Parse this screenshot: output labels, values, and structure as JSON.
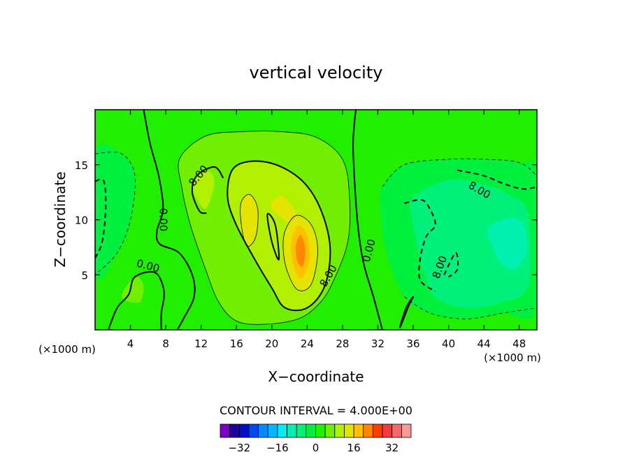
{
  "chart_data": {
    "type": "heatmap",
    "title": "vertical velocity",
    "xlabel": "X−coordinate",
    "ylabel": "Z−coordinate",
    "x_unit_left": "(×1000 m)",
    "x_unit_right": "(×1000 m)",
    "xlim": [
      0,
      50
    ],
    "ylim": [
      0,
      20
    ],
    "x_ticks": [
      4,
      8,
      12,
      16,
      20,
      24,
      28,
      32,
      36,
      40,
      44,
      48
    ],
    "y_ticks": [
      5,
      10,
      15
    ],
    "contour_interval_text": "CONTOUR INTERVAL = 4.000E+00",
    "contour_labels": [
      {
        "text": "8.00",
        "x": 11.7,
        "y": 14.0,
        "rotate": -50
      },
      {
        "text": "0.00",
        "x": 7.7,
        "y": 10.0,
        "rotate": 90
      },
      {
        "text": "0.00",
        "x": 31.0,
        "y": 7.2,
        "rotate": -75
      },
      {
        "text": "8.00",
        "x": 26.4,
        "y": 4.9,
        "rotate": -60
      },
      {
        "text": "0.00",
        "x": 6.0,
        "y": 5.8,
        "rotate": 15
      },
      {
        "text": "8.00",
        "x": 43.5,
        "y": 12.7,
        "rotate": 30
      },
      {
        "text": "8.00",
        "x": 39.0,
        "y": 5.7,
        "rotate": -70
      }
    ],
    "colorbar": {
      "colors": [
        "#7a00c8",
        "#1c00a0",
        "#0010c8",
        "#0048f0",
        "#0088ff",
        "#00b8ff",
        "#00ecf0",
        "#00f0b0",
        "#00f07c",
        "#00f040",
        "#20f000",
        "#70f000",
        "#b0f000",
        "#e4e400",
        "#ffc000",
        "#ff8800",
        "#ff3c00",
        "#f63a3a",
        "#f86868",
        "#fc9898"
      ],
      "tick_labels": [
        "−32",
        "−16",
        "0",
        "16",
        "32"
      ],
      "tick_values": [
        -32,
        -16,
        0,
        16,
        32
      ],
      "vmin": -40,
      "vmax": 40
    },
    "field_regions": [
      {
        "level": 0,
        "points": [
          [
            0,
            0
          ],
          [
            50,
            0
          ],
          [
            50,
            20
          ],
          [
            0,
            20
          ]
        ]
      },
      {
        "level": -4,
        "points": [
          [
            0,
            16
          ],
          [
            3,
            16
          ],
          [
            4.5,
            14
          ],
          [
            4,
            10
          ],
          [
            2.5,
            7
          ],
          [
            0,
            5
          ]
        ]
      },
      {
        "level": -4,
        "points": [
          [
            32.5,
            13
          ],
          [
            35,
            15
          ],
          [
            40,
            15.5
          ],
          [
            44,
            15.5
          ],
          [
            48,
            15.2
          ],
          [
            50,
            14
          ],
          [
            50,
            2
          ],
          [
            46,
            1.5
          ],
          [
            42,
            1
          ],
          [
            38,
            1.5
          ],
          [
            35,
            3
          ],
          [
            33,
            7
          ],
          [
            32.3,
            11
          ]
        ]
      },
      {
        "level": -8,
        "points": [
          [
            36,
            12
          ],
          [
            40,
            13.6
          ],
          [
            44,
            13.2
          ],
          [
            47,
            12.2
          ],
          [
            49,
            10.5
          ],
          [
            49,
            4
          ],
          [
            46,
            2.5
          ],
          [
            42,
            2
          ],
          [
            38.5,
            3
          ],
          [
            37,
            6
          ],
          [
            36,
            9.5
          ]
        ]
      },
      {
        "level": -12,
        "points": [
          [
            44.5,
            9.2
          ],
          [
            47,
            10.2
          ],
          [
            48.5,
            9.5
          ],
          [
            48.8,
            7
          ],
          [
            47.5,
            5.5
          ],
          [
            46,
            6
          ],
          [
            45,
            7.5
          ]
        ]
      },
      {
        "level": 4,
        "points": [
          [
            9.6,
            15.6
          ],
          [
            12.5,
            17.6
          ],
          [
            16.5,
            18
          ],
          [
            21,
            18
          ],
          [
            25,
            17.5
          ],
          [
            28,
            15.5
          ],
          [
            28.8,
            12
          ],
          [
            28.6,
            8
          ],
          [
            27,
            4.5
          ],
          [
            25.5,
            2.5
          ],
          [
            23,
            1
          ],
          [
            19,
            0.5
          ],
          [
            16,
            0.8
          ],
          [
            14,
            2.5
          ],
          [
            12.5,
            5.5
          ],
          [
            10.8,
            9.5
          ],
          [
            9.8,
            13
          ]
        ]
      },
      {
        "level": 4,
        "points": [
          [
            3,
            3
          ],
          [
            4.5,
            4.8
          ],
          [
            5.5,
            4
          ],
          [
            5,
            2.5
          ]
        ]
      },
      {
        "level": 8,
        "points": [
          [
            11,
            13
          ],
          [
            12.5,
            14.5
          ],
          [
            13.5,
            13.5
          ],
          [
            12.5,
            11
          ]
        ]
      },
      {
        "level": 8,
        "points": [
          [
            15.5,
            14.5
          ],
          [
            17.5,
            15.3
          ],
          [
            20.5,
            15
          ],
          [
            23.5,
            13.5
          ],
          [
            25.5,
            11
          ],
          [
            26.6,
            7.5
          ],
          [
            26,
            4
          ],
          [
            24,
            2
          ],
          [
            21.5,
            2
          ],
          [
            20,
            3.8
          ],
          [
            18,
            6.5
          ],
          [
            16,
            9.5
          ],
          [
            15,
            12
          ]
        ]
      },
      {
        "level": 12,
        "points": [
          [
            16.5,
            11.5
          ],
          [
            17.5,
            12.3
          ],
          [
            18.4,
            11
          ],
          [
            18.2,
            8.5
          ],
          [
            17.2,
            7.6
          ],
          [
            16.6,
            9.3
          ]
        ]
      },
      {
        "level": 12,
        "points": [
          [
            20,
            11
          ],
          [
            21,
            12.2
          ],
          [
            22.5,
            11
          ],
          [
            23.5,
            9
          ]
        ]
      },
      {
        "level": 12,
        "points": [
          [
            21.5,
            9
          ],
          [
            22.8,
            10.4
          ],
          [
            24.5,
            9.5
          ],
          [
            25.2,
            7.2
          ],
          [
            24.5,
            4.2
          ],
          [
            23,
            3.6
          ],
          [
            21.8,
            5.2
          ],
          [
            21.3,
            7.2
          ]
        ]
      },
      {
        "level": 16,
        "points": [
          [
            22.2,
            8
          ],
          [
            23,
            9.5
          ],
          [
            24,
            8.6
          ],
          [
            24.3,
            6.4
          ],
          [
            23.4,
            4.7
          ],
          [
            22.5,
            5.7
          ]
        ]
      },
      {
        "level": 20,
        "points": [
          [
            22.7,
            7.6
          ],
          [
            23.3,
            8.6
          ],
          [
            23.8,
            7.2
          ],
          [
            23.5,
            5.8
          ],
          [
            22.9,
            6.2
          ]
        ]
      }
    ],
    "contours": [
      {
        "style": "solid",
        "points": [
          [
            5.5,
            20
          ],
          [
            6.2,
            17
          ],
          [
            7.2,
            14
          ],
          [
            7.7,
            11
          ],
          [
            7,
            9
          ],
          [
            7.3,
            7.8
          ],
          [
            9.5,
            7
          ],
          [
            11,
            5
          ],
          [
            11.2,
            3
          ],
          [
            10,
            1
          ],
          [
            9.3,
            0
          ]
        ]
      },
      {
        "style": "solid",
        "points": [
          [
            29.5,
            20
          ],
          [
            29.2,
            17
          ],
          [
            29.4,
            13
          ],
          [
            29.8,
            9
          ],
          [
            30.4,
            6
          ],
          [
            31.5,
            3
          ],
          [
            32.5,
            0
          ]
        ]
      },
      {
        "style": "solid",
        "points": [
          [
            1.5,
            0
          ],
          [
            2.5,
            2
          ],
          [
            3.8,
            3.2
          ],
          [
            4.5,
            4.8
          ],
          [
            6.8,
            5.2
          ],
          [
            7.8,
            3.5
          ],
          [
            7.5,
            1.5
          ],
          [
            7.5,
            0
          ]
        ]
      },
      {
        "style": "solid",
        "points": [
          [
            14.5,
            13.8
          ],
          [
            13.5,
            14.8
          ],
          [
            11.5,
            14
          ],
          [
            11,
            12.5
          ],
          [
            11.8,
            10.8
          ],
          [
            12.6,
            10.6
          ]
        ]
      },
      {
        "style": "solid",
        "points": [
          [
            15.5,
            14.5
          ],
          [
            17.5,
            15.3
          ],
          [
            20.5,
            15
          ],
          [
            23.5,
            13.5
          ],
          [
            25.5,
            11
          ],
          [
            26.6,
            7.5
          ],
          [
            26,
            4
          ],
          [
            24,
            2
          ],
          [
            21.5,
            2
          ],
          [
            20,
            3.8
          ],
          [
            18,
            6.5
          ],
          [
            16,
            9.5
          ],
          [
            15,
            12
          ],
          [
            15.5,
            14.5
          ]
        ]
      },
      {
        "style": "solid",
        "points": [
          [
            19.5,
            10.5
          ],
          [
            20,
            8
          ],
          [
            20.8,
            6.4
          ],
          [
            20.4,
            9.5
          ],
          [
            19.5,
            10.5
          ]
        ]
      },
      {
        "style": "solid",
        "points": [
          [
            34.5,
            0.2
          ],
          [
            35.5,
            2.2
          ],
          [
            36,
            3
          ],
          [
            35.2,
            2
          ],
          [
            34.5,
            0.2
          ]
        ]
      },
      {
        "style": "thin",
        "points": [
          [
            9.6,
            15.6
          ],
          [
            12.5,
            17.6
          ],
          [
            16.5,
            18
          ],
          [
            21,
            18
          ],
          [
            25,
            17.5
          ],
          [
            28,
            15.5
          ],
          [
            28.8,
            12
          ],
          [
            28.6,
            8
          ],
          [
            27,
            4.5
          ],
          [
            25.5,
            2.5
          ],
          [
            23,
            1
          ],
          [
            19,
            0.5
          ],
          [
            16,
            0.8
          ],
          [
            14,
            2.5
          ],
          [
            12.5,
            5.5
          ],
          [
            10.8,
            9.5
          ],
          [
            9.8,
            13
          ],
          [
            9.6,
            15.6
          ]
        ]
      },
      {
        "style": "thin",
        "points": [
          [
            21.5,
            9
          ],
          [
            22.8,
            10.4
          ],
          [
            24.5,
            9.5
          ],
          [
            25.2,
            7.2
          ],
          [
            24.5,
            4.2
          ],
          [
            23,
            3.6
          ],
          [
            21.8,
            5.2
          ],
          [
            21.3,
            7.2
          ],
          [
            21.5,
            9
          ]
        ]
      },
      {
        "style": "thin",
        "points": [
          [
            16.5,
            11.5
          ],
          [
            17.5,
            12.3
          ],
          [
            18.4,
            11
          ],
          [
            18.2,
            8.5
          ],
          [
            17.2,
            7.6
          ],
          [
            16.6,
            9.3
          ],
          [
            16.5,
            11.5
          ]
        ]
      },
      {
        "style": "dashed",
        "points": [
          [
            0,
            13.5
          ],
          [
            1,
            13.5
          ],
          [
            1.2,
            11
          ],
          [
            0.8,
            8
          ],
          [
            0,
            6.5
          ]
        ]
      },
      {
        "style": "dashed",
        "points": [
          [
            41,
            14.5
          ],
          [
            44,
            14
          ],
          [
            46.5,
            13.2
          ],
          [
            48.5,
            12.8
          ],
          [
            50,
            13
          ]
        ]
      },
      {
        "style": "dashed",
        "points": [
          [
            35,
            11.5
          ],
          [
            37,
            11.8
          ],
          [
            38,
            10.8
          ],
          [
            38.5,
            9.5
          ],
          [
            37.5,
            8.5
          ],
          [
            36.8,
            6.5
          ],
          [
            36.8,
            4.5
          ],
          [
            38.5,
            3.5
          ]
        ]
      },
      {
        "style": "dashed",
        "points": [
          [
            39.5,
            5
          ],
          [
            40.8,
            7
          ],
          [
            41,
            5.5
          ],
          [
            40,
            4.8
          ]
        ]
      },
      {
        "style": "thin-dashed",
        "points": [
          [
            0,
            16
          ],
          [
            3,
            16
          ],
          [
            4.5,
            14
          ],
          [
            4,
            10
          ],
          [
            2.5,
            7
          ],
          [
            0,
            5
          ]
        ]
      },
      {
        "style": "thin-dashed",
        "points": [
          [
            32.5,
            13
          ],
          [
            35,
            15
          ],
          [
            40,
            15.5
          ],
          [
            44,
            15.5
          ],
          [
            48,
            15.2
          ],
          [
            50,
            14
          ]
        ]
      },
      {
        "style": "thin-dashed",
        "points": [
          [
            35,
            3
          ],
          [
            38,
            1.5
          ],
          [
            42,
            1
          ],
          [
            46,
            1.5
          ],
          [
            50,
            2
          ]
        ]
      }
    ]
  }
}
